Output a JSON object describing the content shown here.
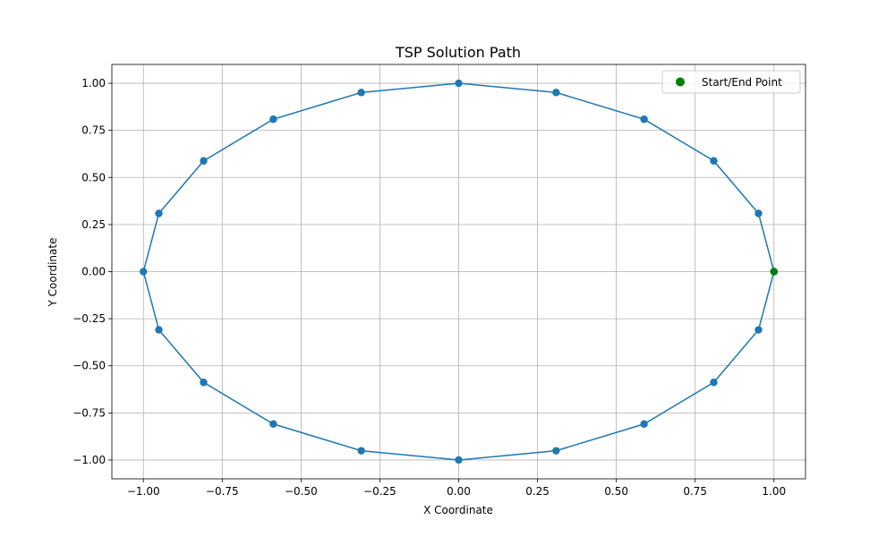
{
  "chart_data": {
    "type": "line",
    "title": "TSP Solution Path",
    "xlabel": "X Coordinate",
    "ylabel": "Y Coordinate",
    "xlim": [
      -1.1,
      1.1
    ],
    "ylim": [
      -1.1,
      1.1
    ],
    "grid": true,
    "legend": {
      "position": "top-right",
      "entries": [
        "Start/End Point"
      ]
    },
    "xticks": [
      -1.0,
      -0.75,
      -0.5,
      -0.25,
      0.0,
      0.25,
      0.5,
      0.75,
      1.0
    ],
    "xtick_labels": [
      "−1.00",
      "−0.75",
      "−0.50",
      "−0.25",
      "0.00",
      "0.25",
      "0.50",
      "0.75",
      "1.00"
    ],
    "yticks": [
      1.0,
      0.75,
      0.5,
      0.25,
      0.0,
      -0.25,
      -0.5,
      -0.75,
      -1.0
    ],
    "ytick_labels": [
      "1.00",
      "0.75",
      "0.50",
      "0.25",
      "0.00",
      "−0.25",
      "−0.50",
      "−0.75",
      "−1.00"
    ],
    "series": [
      {
        "color": "#1f77b4",
        "x": [
          1.0,
          0.951,
          0.809,
          0.588,
          0.309,
          0.0,
          -0.309,
          -0.588,
          -0.809,
          -0.951,
          -1.0,
          -0.951,
          -0.809,
          -0.588,
          -0.309,
          0.0,
          0.309,
          0.588,
          0.809,
          0.951,
          1.0
        ],
        "y": [
          0.0,
          0.309,
          0.588,
          0.809,
          0.951,
          1.0,
          0.951,
          0.809,
          0.588,
          0.309,
          0.0,
          -0.309,
          -0.588,
          -0.809,
          -0.951,
          -1.0,
          -0.951,
          -0.809,
          -0.588,
          -0.309,
          0.0
        ]
      },
      {
        "name": "Start/End Point",
        "color": "#008000",
        "x": [
          1.0
        ],
        "y": [
          0.0
        ]
      }
    ]
  }
}
